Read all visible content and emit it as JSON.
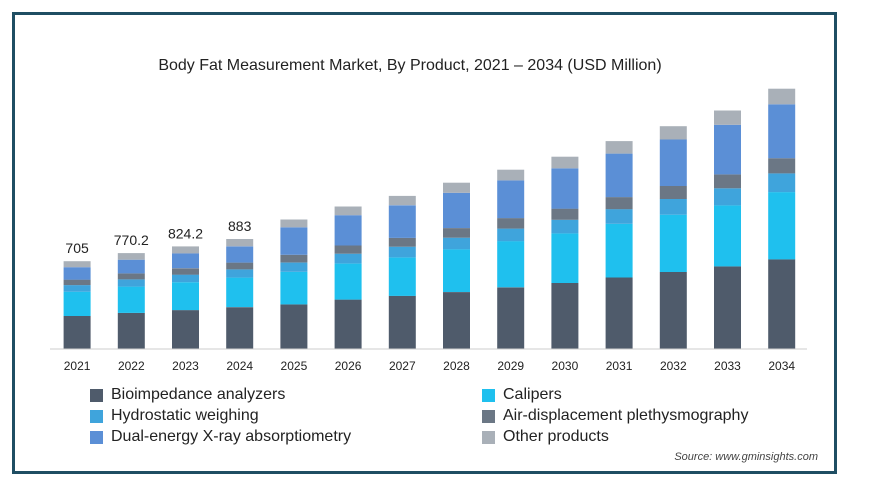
{
  "chart_data": {
    "type": "bar",
    "stacked": true,
    "title": "Body Fat Measurement Market, By Product, 2021 – 2034 (USD Million)",
    "categories": [
      "2021",
      "2022",
      "2023",
      "2024",
      "2025",
      "2026",
      "2027",
      "2028",
      "2029",
      "2030",
      "2031",
      "2032",
      "2033",
      "2034"
    ],
    "totals_labels": [
      "705",
      "770.2",
      "824.2",
      "883",
      "",
      "",
      "",
      "",
      "",
      "",
      "",
      "",
      "",
      ""
    ],
    "series": [
      {
        "name": "Bioimpedance analyzers",
        "color": "#4f5b6b",
        "values": [
          265,
          290,
          312,
          336,
          358,
          397,
          427,
          457,
          495,
          530,
          574,
          618,
          663,
          720
        ]
      },
      {
        "name": "Calipers",
        "color": "#1fc0ee",
        "values": [
          195,
          211,
          224,
          237,
          262,
          289,
          308,
          344,
          371,
          398,
          431,
          460,
          490,
          540
        ]
      },
      {
        "name": "Hydrostatic weighing",
        "color": "#3fa4dc",
        "values": [
          53,
          58,
          61,
          66,
          74,
          79,
          86,
          93,
          101,
          109,
          118,
          127,
          137,
          150
        ]
      },
      {
        "name": "Air-displacement plethysmography",
        "color": "#6b7785",
        "values": [
          44,
          48,
          51,
          55,
          62,
          66,
          71,
          77,
          84,
          90,
          97,
          104,
          112,
          122
        ]
      },
      {
        "name": "Dual-energy X-ray absorptiometry",
        "color": "#5b8fd6",
        "values": [
          100,
          110,
          120,
          130,
          221,
          243,
          262,
          283,
          303,
          324,
          349,
          373,
          398,
          433
        ]
      },
      {
        "name": "Other products",
        "color": "#a9b0b8",
        "values": [
          48,
          53,
          56,
          59,
          63,
          70,
          75,
          81,
          86,
          93,
          100,
          107,
          115,
          125
        ]
      }
    ],
    "ylim": [
      0,
      2200
    ],
    "grid": false,
    "legend_position": "bottom"
  },
  "source": "Source: www.gminsights.com"
}
